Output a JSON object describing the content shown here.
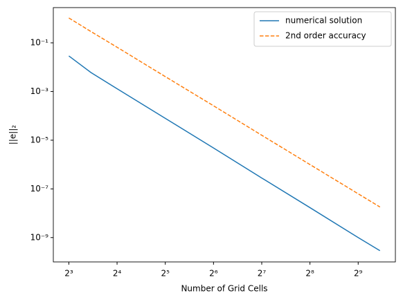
{
  "chart_data": {
    "type": "line",
    "xlabel": "Number of Grid Cells",
    "ylabel": "||e||₂",
    "x": [
      8,
      11,
      16,
      32,
      64,
      128,
      256,
      512,
      700
    ],
    "series": [
      {
        "name": "numerical solution",
        "color": "#1f77b4",
        "dash": "solid",
        "values": [
          0.029,
          0.006,
          0.0013,
          7.9e-05,
          4.8e-06,
          2.8e-07,
          1.7e-08,
          1e-09,
          2.9e-10
        ]
      },
      {
        "name": "2nd order accuracy",
        "color": "#ff7f0e",
        "dash": "dashed",
        "values": [
          1.05,
          0.29,
          0.066,
          0.0041,
          0.00026,
          1.6e-05,
          1e-06,
          6.3e-08,
          1.8e-08
        ]
      }
    ],
    "xscale": "log",
    "yscale": "log",
    "xlim": [
      6.4,
      874
    ],
    "ylim": [
      1e-10,
      2.8
    ],
    "xticks": [
      {
        "value": 8,
        "label": "2³"
      },
      {
        "value": 16,
        "label": "2⁴"
      },
      {
        "value": 32,
        "label": "2⁵"
      },
      {
        "value": 64,
        "label": "2⁶"
      },
      {
        "value": 128,
        "label": "2⁷"
      },
      {
        "value": 256,
        "label": "2⁸"
      },
      {
        "value": 512,
        "label": "2⁹"
      }
    ],
    "yticks": [
      {
        "value": 0.1,
        "label": "10⁻¹"
      },
      {
        "value": 0.001,
        "label": "10⁻³"
      },
      {
        "value": 1e-05,
        "label": "10⁻⁵"
      },
      {
        "value": 1e-07,
        "label": "10⁻⁷"
      },
      {
        "value": 1e-09,
        "label": "10⁻⁹"
      }
    ],
    "legend": "upper right",
    "grid": false
  }
}
